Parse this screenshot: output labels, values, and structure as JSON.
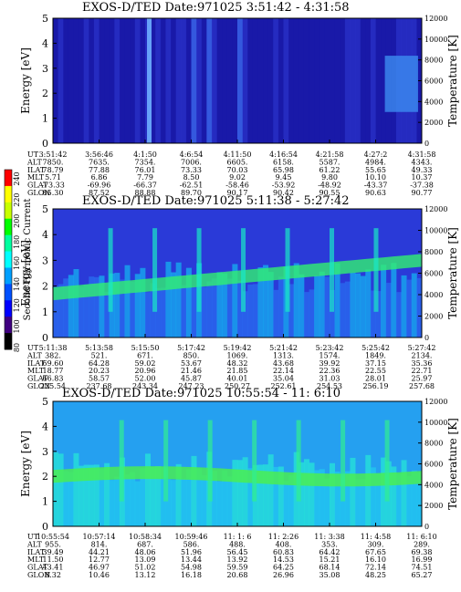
{
  "chart_data": [
    {
      "type": "heatmap",
      "title": "EXOS-D/TED   Date:971025   3:51:42 - 4:31:58",
      "ylabel": "Energy [eV]",
      "y2label": "Temperature [K]",
      "ylim": [
        0,
        5
      ],
      "y2lim": [
        0,
        12000
      ],
      "yticks": [
        "0",
        "1",
        "2",
        "3",
        "4",
        "5"
      ],
      "y2ticks": [
        "0",
        "2000",
        "4000",
        "6000",
        "8000",
        "10000",
        "12000"
      ],
      "description_levels": "mostly low (dark blue) with a bright vertical streak near 4:1:50 and enhanced patches near the end",
      "row_labels": [
        "UT",
        "ALT",
        "ILAT",
        "MLT",
        "GLAT",
        "GLON"
      ],
      "columns": [
        [
          "3:51:42",
          "7850.",
          "78.79",
          "5.71",
          "-73.33",
          "85.30"
        ],
        [
          "3:56:46",
          "7635.",
          "77.88",
          "6.86",
          "-69.96",
          "87.52"
        ],
        [
          "4:1:50",
          "7354.",
          "76.01",
          "7.79",
          "-66.37",
          "88.88"
        ],
        [
          "4:6:54",
          "7006.",
          "73.33",
          "8.50",
          "-62.51",
          "89.70"
        ],
        [
          "4:11:50",
          "6605.",
          "70.03",
          "9.02",
          "-58.46",
          "90.17"
        ],
        [
          "4:16:54",
          "6158.",
          "65.98",
          "9.45",
          "-53.92",
          "90.42"
        ],
        [
          "4:21:58",
          "5587.",
          "61.22",
          "9.80",
          "-48.92",
          "90.55"
        ],
        [
          "4:27:2",
          "4984.",
          "55.65",
          "10.10",
          "-43.37",
          "90.63"
        ],
        [
          "4:31:58",
          "4343.",
          "49.33",
          "10.37",
          "-37.38",
          "90.77"
        ]
      ]
    },
    {
      "type": "heatmap",
      "title": "EXOS-D/TED   Date:971025   5:11:38 - 5:27:42",
      "ylabel": "Energy [eV]",
      "y2label": "Temperature [K]",
      "ylim": [
        0,
        5
      ],
      "y2lim": [
        0,
        12000
      ],
      "yticks": [
        "0",
        "1",
        "2",
        "3",
        "4",
        "5"
      ],
      "y2ticks": [
        "0",
        "2000",
        "4000",
        "6000",
        "8000",
        "10000",
        "12000"
      ],
      "description_levels": "bright green band near 2 eV rising toward 3 eV over time, cyan background below 3 eV",
      "row_labels": [
        "UT",
        "ALT",
        "ILAT",
        "MLT",
        "GLAT",
        "GLON"
      ],
      "columns": [
        [
          "5:11:38",
          "382.",
          "69.60",
          "18.77",
          "66.83",
          "225.54"
        ],
        [
          "5:13:58",
          "521.",
          "64.28",
          "20.23",
          "58.57",
          "237.68"
        ],
        [
          "5:15:50",
          "671.",
          "59.02",
          "20.96",
          "52.00",
          "243.34"
        ],
        [
          "5:17:42",
          "850.",
          "53.67",
          "21.46",
          "45.87",
          "247.23"
        ],
        [
          "5:19:42",
          "1069.",
          "48.32",
          "21.85",
          "40.01",
          "250.27"
        ],
        [
          "5:21:42",
          "1313.",
          "43.68",
          "22.14",
          "35.04",
          "252.61"
        ],
        [
          "5:23:42",
          "1574.",
          "39.92",
          "22.36",
          "31.03",
          "254.53"
        ],
        [
          "5:25:42",
          "1849.",
          "37.15",
          "22.55",
          "28.01",
          "256.19"
        ],
        [
          "5:27:42",
          "2134.",
          "35.36",
          "22.71",
          "25.97",
          "257.68"
        ]
      ]
    },
    {
      "type": "heatmap",
      "title": "EXOS-D/TED   Date:971025   10:55:54 - 11: 6:10",
      "ylabel": "Energy [eV]",
      "y2label": "Temperature [K]",
      "ylim": [
        0,
        5
      ],
      "y2lim": [
        0,
        12000
      ],
      "yticks": [
        "0",
        "1",
        "2",
        "3",
        "4",
        "5"
      ],
      "y2ticks": [
        "0",
        "2000",
        "4000",
        "6000",
        "8000",
        "10000",
        "12000"
      ],
      "description_levels": "cyan/green throughout with green band near 2 eV and vertical bright streaks",
      "row_labels": [
        "UT",
        "ALT",
        "ILAT",
        "MLT",
        "GLAT",
        "GLON"
      ],
      "columns": [
        [
          "10:55:54",
          "955.",
          "39.49",
          "11.50",
          "43.41",
          "8.32"
        ],
        [
          "10:57:14",
          "814.",
          "44.21",
          "12.77",
          "46.97",
          "10.46"
        ],
        [
          "10:58:34",
          "687.",
          "48.06",
          "13.09",
          "51.02",
          "13.12"
        ],
        [
          "10:59:46",
          "586.",
          "51.96",
          "13.44",
          "54.98",
          "16.18"
        ],
        [
          "11: 1: 6",
          "488.",
          "56.45",
          "13.92",
          "59.59",
          "20.68"
        ],
        [
          "11: 2:26",
          "408.",
          "60.83",
          "14.53",
          "64.25",
          "26.96"
        ],
        [
          "11: 3:38",
          "353.",
          "64.42",
          "15.21",
          "68.14",
          "35.08"
        ],
        [
          "11: 4:58",
          "309.",
          "67.65",
          "16.10",
          "72.14",
          "48.25"
        ],
        [
          "11: 6:10",
          "289.",
          "69.38",
          "16.99",
          "74.51",
          "65.27"
        ]
      ]
    }
  ],
  "colorbar": {
    "label": "Second Harmonic Current",
    "ticks": [
      "240",
      "220",
      "200",
      "180",
      "160",
      "140",
      "120",
      "100",
      "80"
    ],
    "colors": [
      "#ff0000",
      "#ffff00",
      "#c8ff00",
      "#00ff00",
      "#00ffa0",
      "#00ffff",
      "#00a0ff",
      "#0050ff",
      "#0000ff",
      "#400080",
      "#000000"
    ]
  }
}
